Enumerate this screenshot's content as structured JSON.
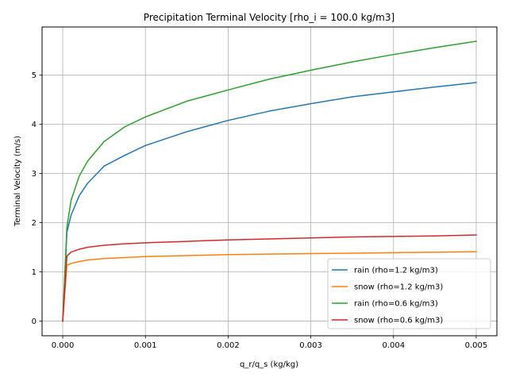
{
  "chart_data": {
    "type": "line",
    "title": "Precipitation Terminal Velocity [rho_i = 100.0 kg/m3]",
    "xlabel": "q_r/q_s (kg/kg)",
    "ylabel": "Terminal Velocity (m/s)",
    "xlim": [
      -0.00025,
      0.00525
    ],
    "ylim": [
      -0.3,
      5.98
    ],
    "xticks": [
      0.0,
      0.001,
      0.002,
      0.003,
      0.004,
      0.005
    ],
    "xtick_labels": [
      "0.000",
      "0.001",
      "0.002",
      "0.003",
      "0.004",
      "0.005"
    ],
    "yticks": [
      0,
      1,
      2,
      3,
      4,
      5
    ],
    "ytick_labels": [
      "0",
      "1",
      "2",
      "3",
      "4",
      "5"
    ],
    "grid": true,
    "legend_position": "lower-right",
    "series": [
      {
        "name": "rain (rho=1.2 kg/m3)",
        "color": "#1f77b4",
        "x": [
          0.0,
          5e-05,
          0.0001,
          0.0002,
          0.0003,
          0.0005,
          0.00075,
          0.001,
          0.0015,
          0.002,
          0.0025,
          0.003,
          0.0035,
          0.004,
          0.0045,
          0.005
        ],
        "y": [
          0.0,
          1.8,
          2.15,
          2.55,
          2.8,
          3.15,
          3.37,
          3.57,
          3.85,
          4.08,
          4.27,
          4.42,
          4.56,
          4.66,
          4.76,
          4.85
        ]
      },
      {
        "name": "snow (rho=1.2 kg/m3)",
        "color": "#ff7f0e",
        "x": [
          0.0,
          5e-05,
          0.0001,
          0.0002,
          0.0003,
          0.0005,
          0.00075,
          0.001,
          0.0015,
          0.002,
          0.0025,
          0.003,
          0.0035,
          0.004,
          0.0045,
          0.005
        ],
        "y": [
          0.0,
          1.13,
          1.17,
          1.21,
          1.24,
          1.27,
          1.29,
          1.31,
          1.33,
          1.35,
          1.36,
          1.37,
          1.38,
          1.39,
          1.4,
          1.41
        ]
      },
      {
        "name": "rain (rho=0.6 kg/m3)",
        "color": "#2ca02c",
        "x": [
          0.0,
          5e-05,
          0.0001,
          0.0002,
          0.0003,
          0.0005,
          0.00075,
          0.001,
          0.0015,
          0.002,
          0.0025,
          0.003,
          0.0035,
          0.004,
          0.0045,
          0.005
        ],
        "y": [
          0.0,
          1.9,
          2.45,
          2.95,
          3.25,
          3.65,
          3.95,
          4.15,
          4.47,
          4.7,
          4.92,
          5.1,
          5.27,
          5.42,
          5.56,
          5.69
        ]
      },
      {
        "name": "snow (rho=0.6 kg/m3)",
        "color": "#d62728",
        "x": [
          0.0,
          5e-05,
          0.0001,
          0.0002,
          0.0003,
          0.0005,
          0.00075,
          0.001,
          0.0015,
          0.002,
          0.0025,
          0.003,
          0.0035,
          0.004,
          0.0045,
          0.005
        ],
        "y": [
          0.0,
          1.32,
          1.4,
          1.46,
          1.5,
          1.54,
          1.57,
          1.59,
          1.62,
          1.65,
          1.67,
          1.69,
          1.71,
          1.72,
          1.73,
          1.75
        ]
      }
    ]
  }
}
